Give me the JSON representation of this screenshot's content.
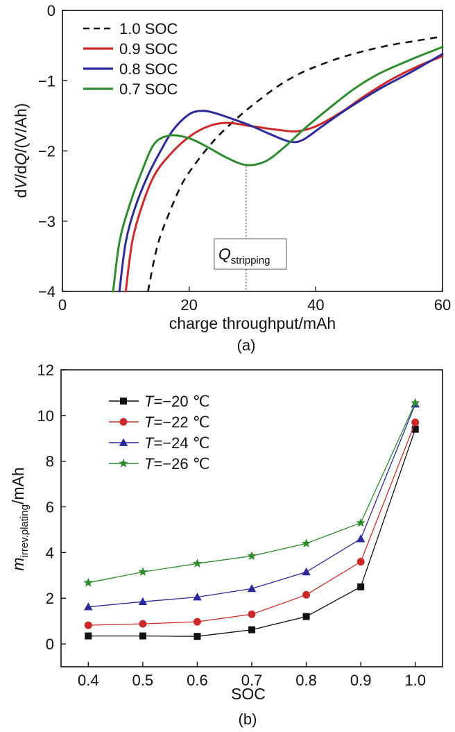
{
  "chart_data": [
    {
      "type": "line",
      "caption": "(a)",
      "xlabel": "charge throughput/mAh",
      "ylabel": "dV/dQ/(V/Ah)",
      "ylabel_parts": [
        "d",
        "V",
        "/d",
        "Q",
        "/(V/Ah)"
      ],
      "xlim": [
        0,
        60
      ],
      "ylim": [
        -4,
        0
      ],
      "xticks": [
        0,
        20,
        40,
        60
      ],
      "yticks": [
        0,
        -1,
        -2,
        -3,
        -4
      ],
      "xtick_labels": [
        "0",
        "20",
        "40",
        "60"
      ],
      "ytick_labels": [
        "0",
        "−1",
        "−2",
        "−3",
        "−4"
      ],
      "legend_position": "top-left",
      "series": [
        {
          "name": "1.0 SOC",
          "color": "#111111",
          "dash": true,
          "points": [
            [
              13.5,
              -4.0
            ],
            [
              15,
              -3.35
            ],
            [
              17,
              -2.85
            ],
            [
              19,
              -2.45
            ],
            [
              21,
              -2.18
            ],
            [
              23,
              -1.95
            ],
            [
              25,
              -1.75
            ],
            [
              28,
              -1.5
            ],
            [
              31,
              -1.28
            ],
            [
              34,
              -1.08
            ],
            [
              37,
              -0.92
            ],
            [
              40,
              -0.8
            ],
            [
              44,
              -0.67
            ],
            [
              48,
              -0.57
            ],
            [
              52,
              -0.49
            ],
            [
              56,
              -0.43
            ],
            [
              60,
              -0.37
            ]
          ]
        },
        {
          "name": "0.9 SOC",
          "color": "#cc2a2a",
          "dash": false,
          "points": [
            [
              10,
              -4.0
            ],
            [
              11,
              -3.3
            ],
            [
              12.5,
              -2.8
            ],
            [
              14.5,
              -2.35
            ],
            [
              17,
              -2.05
            ],
            [
              20,
              -1.8
            ],
            [
              23,
              -1.65
            ],
            [
              26,
              -1.6
            ],
            [
              30,
              -1.65
            ],
            [
              34,
              -1.7
            ],
            [
              37,
              -1.72
            ],
            [
              40,
              -1.65
            ],
            [
              44,
              -1.45
            ],
            [
              48,
              -1.2
            ],
            [
              52,
              -0.98
            ],
            [
              56,
              -0.8
            ],
            [
              60,
              -0.65
            ]
          ]
        },
        {
          "name": "0.8 SOC",
          "color": "#2c2a9a",
          "dash": false,
          "points": [
            [
              9,
              -4.0
            ],
            [
              10,
              -3.3
            ],
            [
              11.5,
              -2.8
            ],
            [
              13.5,
              -2.35
            ],
            [
              15.5,
              -2.0
            ],
            [
              17.5,
              -1.7
            ],
            [
              20,
              -1.48
            ],
            [
              22,
              -1.43
            ],
            [
              24,
              -1.46
            ],
            [
              27,
              -1.55
            ],
            [
              30,
              -1.65
            ],
            [
              33,
              -1.77
            ],
            [
              36,
              -1.87
            ],
            [
              38,
              -1.84
            ],
            [
              41,
              -1.65
            ],
            [
              45,
              -1.4
            ],
            [
              50,
              -1.12
            ],
            [
              55,
              -0.88
            ],
            [
              60,
              -0.62
            ]
          ]
        },
        {
          "name": "0.7 SOC",
          "color": "#2e8b2e",
          "dash": false,
          "points": [
            [
              8,
              -4.0
            ],
            [
              9,
              -3.3
            ],
            [
              10.5,
              -2.8
            ],
            [
              12.5,
              -2.3
            ],
            [
              14.5,
              -1.9
            ],
            [
              17,
              -1.78
            ],
            [
              20,
              -1.82
            ],
            [
              23,
              -1.95
            ],
            [
              26,
              -2.1
            ],
            [
              29,
              -2.2
            ],
            [
              32,
              -2.15
            ],
            [
              35,
              -1.95
            ],
            [
              38,
              -1.7
            ],
            [
              42,
              -1.4
            ],
            [
              46,
              -1.12
            ],
            [
              50,
              -0.9
            ],
            [
              55,
              -0.7
            ],
            [
              60,
              -0.52
            ]
          ]
        }
      ],
      "annotations": [
        {
          "text": "Q",
          "subscript": "stripping",
          "x": 29
        }
      ]
    },
    {
      "type": "line",
      "caption": "(b)",
      "xlabel": "SOC",
      "ylabel": "m",
      "ylabel_sub": "irrev.plating",
      "ylabel_unit": "/mAh",
      "xlim": [
        0.35,
        1.05
      ],
      "ylim": [
        -1,
        12
      ],
      "x": [
        0.4,
        0.5,
        0.6,
        0.7,
        0.8,
        0.9,
        1.0
      ],
      "xtick_labels": [
        "0.4",
        "0.5",
        "0.6",
        "0.7",
        "0.8",
        "0.9",
        "1.0"
      ],
      "yticks": [
        0,
        2,
        4,
        6,
        8,
        10,
        12
      ],
      "ytick_labels": [
        "0",
        "2",
        "4",
        "6",
        "8",
        "10",
        "12"
      ],
      "legend_position": "top-left",
      "series": [
        {
          "name": "T=−20 ℃",
          "var": "T",
          "rest": "=−20 ℃",
          "color": "#111111",
          "marker": "square",
          "values": [
            0.35,
            0.35,
            0.33,
            0.62,
            1.2,
            2.5,
            9.4
          ]
        },
        {
          "name": "T=−22 ℃",
          "var": "T",
          "rest": "=−22 ℃",
          "color": "#cc2a2a",
          "marker": "circle",
          "values": [
            0.82,
            0.88,
            0.97,
            1.3,
            2.15,
            3.6,
            9.7
          ]
        },
        {
          "name": "T=−24 ℃",
          "var": "T",
          "rest": "=−24 ℃",
          "color": "#2c2a9a",
          "marker": "triangle",
          "values": [
            1.62,
            1.85,
            2.05,
            2.42,
            3.15,
            4.6,
            10.5
          ]
        },
        {
          "name": "T=−26 ℃",
          "var": "T",
          "rest": "=−26 ℃",
          "color": "#2e8b2e",
          "marker": "star",
          "values": [
            2.68,
            3.15,
            3.52,
            3.85,
            4.4,
            5.3,
            10.55
          ]
        }
      ]
    }
  ]
}
